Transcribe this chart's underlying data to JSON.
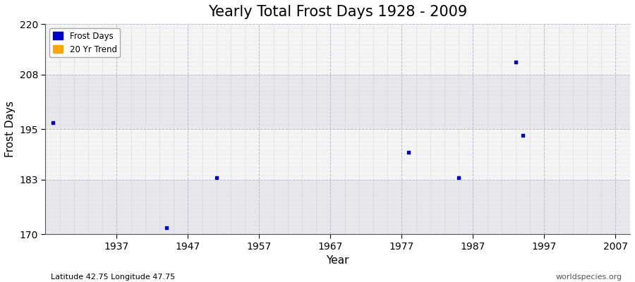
{
  "title": "Yearly Total Frost Days 1928 - 2009",
  "xlabel": "Year",
  "ylabel": "Frost Days",
  "subtitle_left": "Latitude 42.75 Longitude 47.75",
  "subtitle_right": "worldspecies.org",
  "xlim": [
    1927,
    2009
  ],
  "ylim": [
    170,
    220
  ],
  "yticks": [
    170,
    183,
    195,
    208,
    220
  ],
  "xticks": [
    1937,
    1947,
    1957,
    1967,
    1977,
    1987,
    1997,
    2007
  ],
  "scatter_x": [
    1928,
    1944,
    1951,
    1978,
    1985,
    1993,
    1994
  ],
  "scatter_y": [
    196.5,
    171.5,
    183.5,
    189.5,
    183.5,
    211.0,
    193.5
  ],
  "dot_color": "#0000CC",
  "dot_size": 5,
  "background_color": "#FFFFFF",
  "plot_area_color": "#EEEEEE",
  "band_color_light": "#F5F5F5",
  "band_color_dark": "#E8E8EC",
  "grid_color": "#BBBBCC",
  "legend_frost_color": "#0000CC",
  "legend_trend_color": "#FFA500",
  "title_fontsize": 15,
  "axis_label_fontsize": 11,
  "tick_fontsize": 10
}
